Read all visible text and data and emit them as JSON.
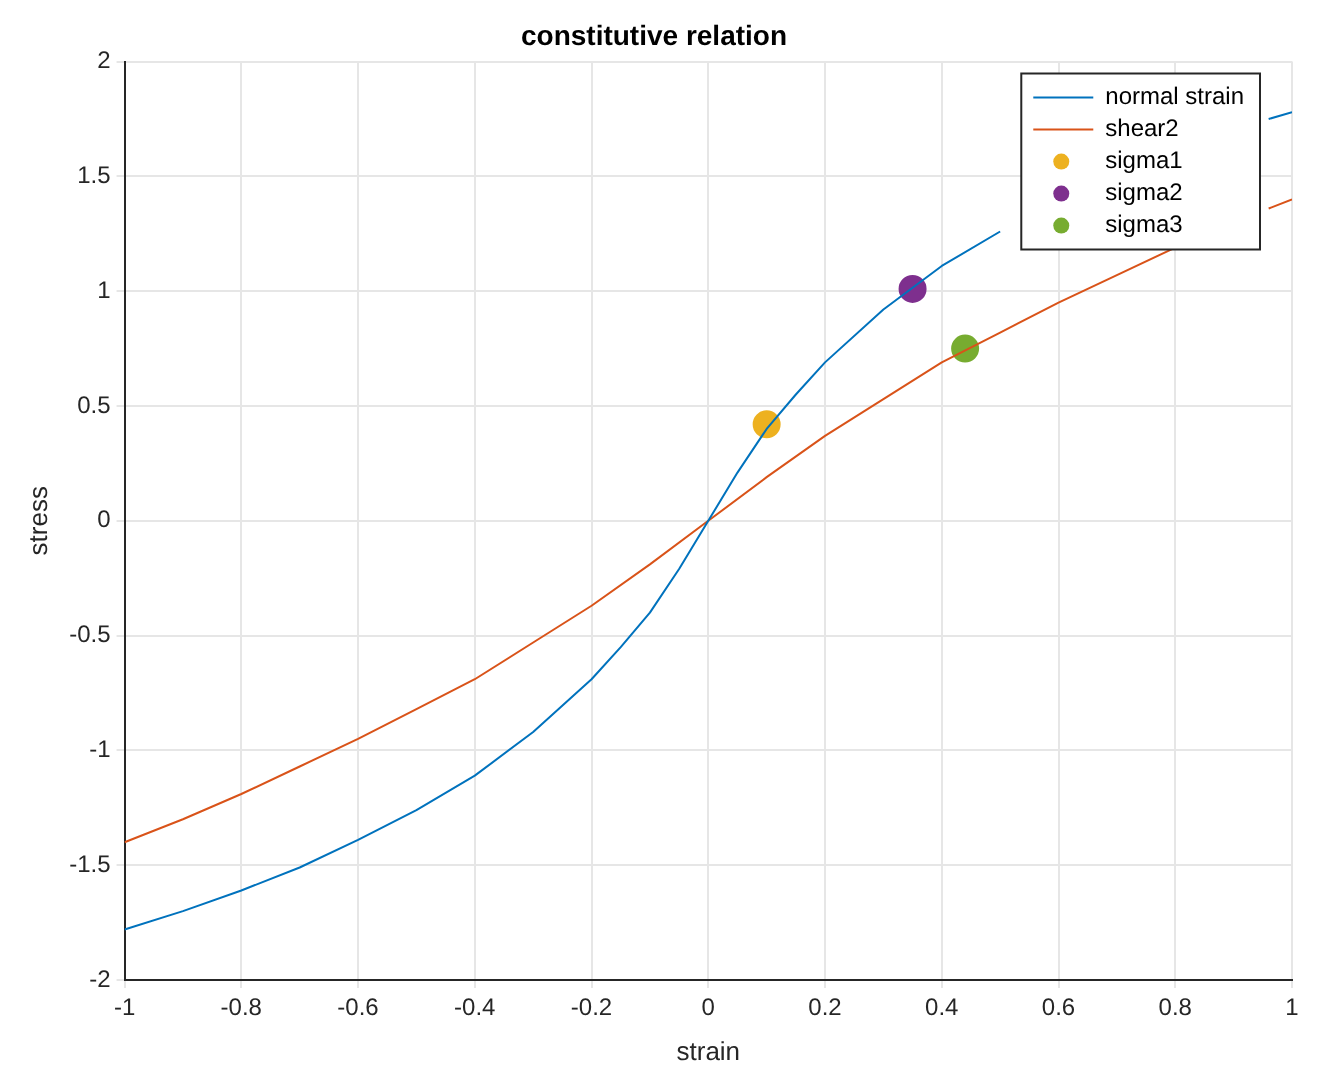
{
  "chart_data": {
    "type": "line",
    "title": "constitutive relation",
    "xlabel": "strain",
    "ylabel": "stress",
    "xlim": [
      -1,
      1
    ],
    "ylim": [
      -2,
      2
    ],
    "xticks": [
      -1,
      -0.8,
      -0.6,
      -0.4,
      -0.2,
      0,
      0.2,
      0.4,
      0.6,
      0.8,
      1
    ],
    "yticks": [
      -2,
      -1.5,
      -1,
      -0.5,
      0,
      0.5,
      1,
      1.5,
      2
    ],
    "grid": true,
    "legend": "top right",
    "marker": "none",
    "line_style": "solid",
    "series": [
      {
        "name": "normal strain",
        "type": "line",
        "color": "#0072bd",
        "x": [
          -1,
          -0.9,
          -0.8,
          -0.7,
          -0.6,
          -0.5,
          -0.4,
          -0.3,
          -0.2,
          -0.15,
          -0.1,
          -0.05,
          0,
          0.05,
          0.1,
          0.15,
          0.2,
          0.3,
          0.4,
          0.5,
          0.6,
          0.7,
          0.8,
          0.9,
          0.96,
          1
        ],
        "values": [
          -1.78,
          -1.7,
          -1.61,
          -1.51,
          -1.39,
          -1.26,
          -1.11,
          -0.92,
          -0.69,
          -0.55,
          -0.4,
          -0.21,
          0,
          0.21,
          0.4,
          0.55,
          0.69,
          0.92,
          1.11,
          1.26,
          null,
          null,
          null,
          null,
          1.75,
          1.78
        ]
      },
      {
        "name": "shear2",
        "type": "line",
        "color": "#d95319",
        "x": [
          -1,
          -0.9,
          -0.8,
          -0.7,
          -0.6,
          -0.5,
          -0.4,
          -0.3,
          -0.2,
          -0.1,
          0,
          0.1,
          0.2,
          0.3,
          0.4,
          0.5,
          0.6,
          0.7,
          0.8,
          0.9,
          0.96,
          1
        ],
        "values": [
          -1.4,
          -1.3,
          -1.19,
          -1.07,
          -0.95,
          -0.82,
          -0.69,
          -0.53,
          -0.37,
          -0.19,
          0,
          0.19,
          0.37,
          0.53,
          0.69,
          0.82,
          0.95,
          1.07,
          1.19,
          null,
          1.36,
          1.4
        ]
      },
      {
        "name": "sigma1",
        "type": "scatter",
        "marker": "circle",
        "color": "#edb120",
        "x": [
          0.1
        ],
        "values": [
          0.42
        ]
      },
      {
        "name": "sigma2",
        "type": "scatter",
        "marker": "circle",
        "color": "#7e2f8e",
        "x": [
          0.35
        ],
        "values": [
          1.01
        ]
      },
      {
        "name": "sigma3",
        "type": "scatter",
        "marker": "circle",
        "color": "#77ac30",
        "x": [
          0.44
        ],
        "values": [
          0.75
        ]
      }
    ]
  }
}
